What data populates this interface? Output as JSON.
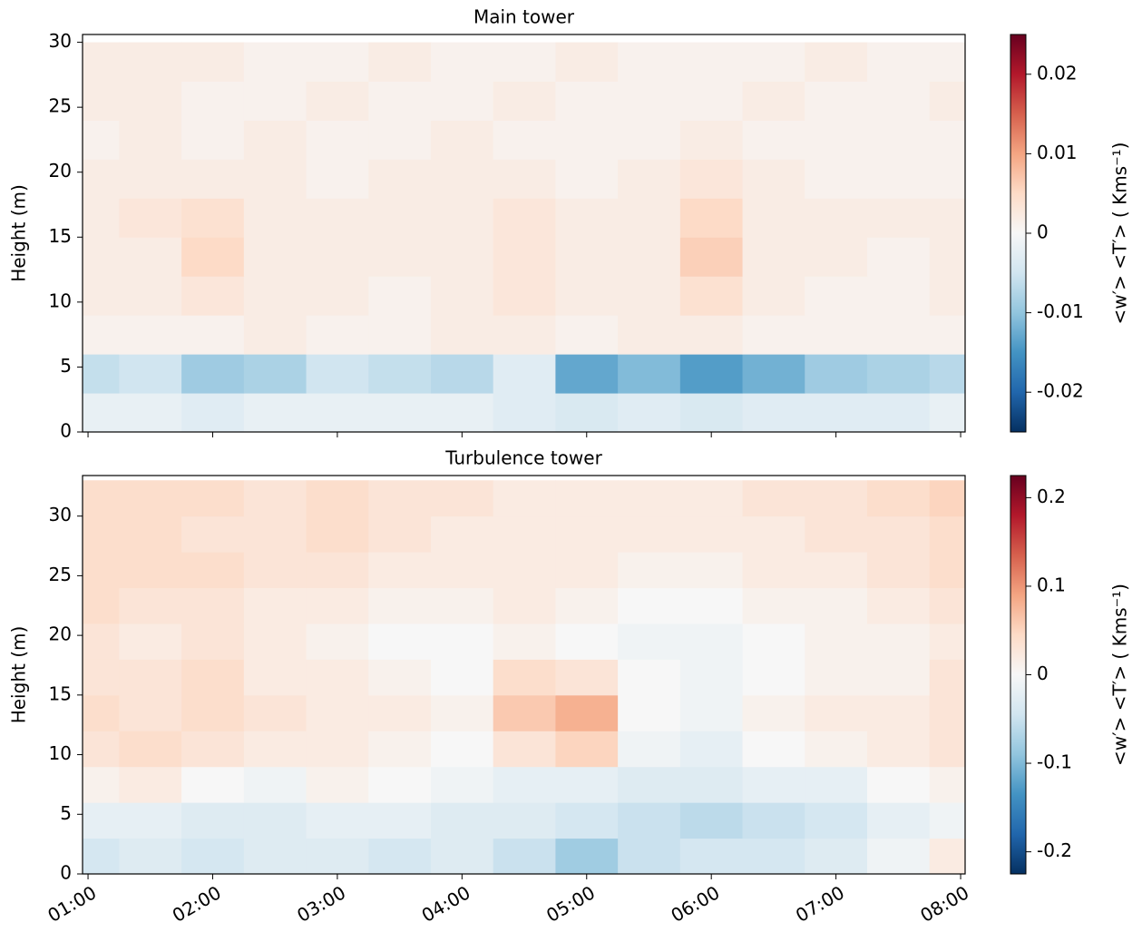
{
  "chart_data": [
    {
      "type": "heatmap",
      "title": "Main tower",
      "ylabel": "Height (m)",
      "colorbar_label": "<w′> <T′>  ( Kms⁻¹)",
      "x": [
        1,
        1.5,
        2,
        2.5,
        3,
        3.5,
        4,
        4.5,
        5,
        5.5,
        6,
        6.5,
        7,
        7.5,
        8
      ],
      "y": [
        1.5,
        4.5,
        7.5,
        10.5,
        13.5,
        16.5,
        19.5,
        22.5,
        25.5,
        28.5
      ],
      "z": [
        [
          -0.002,
          -0.002,
          -0.003,
          -0.002,
          -0.002,
          -0.002,
          -0.002,
          -0.003,
          -0.004,
          -0.003,
          -0.004,
          -0.003,
          -0.003,
          -0.003,
          -0.002
        ],
        [
          -0.006,
          -0.005,
          -0.009,
          -0.008,
          -0.005,
          -0.006,
          -0.007,
          -0.003,
          -0.013,
          -0.011,
          -0.014,
          -0.012,
          -0.009,
          -0.008,
          -0.007
        ],
        [
          0.001,
          0.001,
          0.001,
          0.002,
          0.001,
          0.001,
          0.002,
          0.002,
          0.001,
          0.002,
          0.002,
          0.001,
          0.001,
          0.001,
          0.001
        ],
        [
          0.002,
          0.002,
          0.003,
          0.002,
          0.002,
          0.001,
          0.002,
          0.003,
          0.002,
          0.002,
          0.004,
          0.002,
          0.001,
          0.001,
          0.002
        ],
        [
          0.002,
          0.002,
          0.005,
          0.002,
          0.002,
          0.002,
          0.002,
          0.003,
          0.002,
          0.002,
          0.006,
          0.002,
          0.002,
          0.001,
          0.002
        ],
        [
          0.002,
          0.003,
          0.004,
          0.002,
          0.002,
          0.002,
          0.002,
          0.003,
          0.002,
          0.002,
          0.005,
          0.002,
          0.002,
          0.002,
          0.002
        ],
        [
          0.002,
          0.002,
          0.002,
          0.002,
          0.001,
          0.002,
          0.002,
          0.002,
          0.001,
          0.002,
          0.003,
          0.002,
          0.001,
          0.001,
          0.001
        ],
        [
          0.001,
          0.002,
          0.001,
          0.002,
          0.001,
          0.001,
          0.002,
          0.001,
          0.001,
          0.001,
          0.002,
          0.001,
          0.001,
          0.001,
          0.001
        ],
        [
          0.002,
          0.002,
          0.001,
          0.001,
          0.002,
          0.001,
          0.001,
          0.002,
          0.001,
          0.001,
          0.001,
          0.002,
          0.001,
          0.001,
          0.002
        ],
        [
          0.002,
          0.002,
          0.002,
          0.001,
          0.001,
          0.002,
          0.001,
          0.001,
          0.002,
          0.001,
          0.001,
          0.001,
          0.002,
          0.001,
          0.001
        ]
      ],
      "xlim": [
        0.956,
        8.036
      ],
      "ylim": [
        0,
        30.6
      ],
      "xticks": [
        1,
        2,
        3,
        4,
        5,
        6,
        7,
        8
      ],
      "show_xtick_labels": false,
      "yticks": [
        0,
        5,
        10,
        15,
        20,
        25,
        30
      ],
      "zlim": [
        -0.025,
        0.025
      ],
      "zticks": [
        -0.02,
        -0.01,
        0.0,
        0.01,
        0.02
      ],
      "colormap": [
        "#053061",
        "#2166ac",
        "#4393c3",
        "#92c5de",
        "#d1e5f0",
        "#f7f7f7",
        "#fddbc7",
        "#f4a582",
        "#d6604d",
        "#b2182b",
        "#67001f"
      ]
    },
    {
      "type": "heatmap",
      "title": "Turbulence tower",
      "ylabel": "Height (m)",
      "colorbar_label": "<w′> <T′>  ( Kms⁻¹)",
      "x": [
        1,
        1.5,
        2,
        2.5,
        3,
        3.5,
        4,
        4.5,
        5,
        5.5,
        6,
        6.5,
        7,
        7.5,
        8
      ],
      "y": [
        1.5,
        4.5,
        7.5,
        10.5,
        13.5,
        16.5,
        19.5,
        22.5,
        25.5,
        28.5,
        31.5
      ],
      "z": [
        [
          -0.04,
          -0.03,
          -0.04,
          -0.03,
          -0.03,
          -0.04,
          -0.03,
          -0.05,
          -0.08,
          -0.05,
          -0.04,
          -0.04,
          -0.03,
          -0.01,
          0.02
        ],
        [
          -0.02,
          -0.02,
          -0.03,
          -0.03,
          -0.02,
          -0.02,
          -0.03,
          -0.03,
          -0.04,
          -0.05,
          -0.06,
          -0.05,
          -0.04,
          -0.02,
          -0.01
        ],
        [
          0.01,
          0.02,
          0.0,
          -0.01,
          0.01,
          0.0,
          -0.01,
          -0.02,
          -0.02,
          -0.03,
          -0.03,
          -0.02,
          -0.02,
          0.0,
          0.01
        ],
        [
          0.03,
          0.04,
          0.03,
          0.02,
          0.02,
          0.01,
          0.0,
          0.03,
          0.05,
          -0.01,
          -0.02,
          0.0,
          0.01,
          0.02,
          0.03
        ],
        [
          0.04,
          0.03,
          0.04,
          0.03,
          0.02,
          0.02,
          0.01,
          0.06,
          0.08,
          0.0,
          -0.01,
          0.01,
          0.02,
          0.02,
          0.03
        ],
        [
          0.03,
          0.03,
          0.04,
          0.02,
          0.02,
          0.01,
          0.0,
          0.04,
          0.03,
          0.0,
          -0.01,
          0.0,
          0.01,
          0.01,
          0.03
        ],
        [
          0.03,
          0.02,
          0.03,
          0.02,
          0.01,
          0.0,
          0.0,
          0.01,
          0.0,
          -0.01,
          -0.01,
          0.0,
          0.01,
          0.01,
          0.02
        ],
        [
          0.04,
          0.03,
          0.03,
          0.02,
          0.02,
          0.01,
          0.01,
          0.02,
          0.01,
          0.0,
          0.0,
          0.01,
          0.01,
          0.02,
          0.03
        ],
        [
          0.04,
          0.04,
          0.04,
          0.03,
          0.03,
          0.02,
          0.02,
          0.02,
          0.02,
          0.01,
          0.01,
          0.02,
          0.02,
          0.03,
          0.04
        ],
        [
          0.04,
          0.04,
          0.03,
          0.03,
          0.04,
          0.03,
          0.02,
          0.02,
          0.02,
          0.02,
          0.02,
          0.02,
          0.03,
          0.03,
          0.04
        ],
        [
          0.04,
          0.04,
          0.04,
          0.03,
          0.04,
          0.03,
          0.03,
          0.02,
          0.02,
          0.02,
          0.02,
          0.03,
          0.03,
          0.04,
          0.05
        ]
      ],
      "xlim": [
        0.956,
        8.036
      ],
      "ylim": [
        0,
        33.4
      ],
      "xticks": [
        {
          "value": 1,
          "label": "01:00"
        },
        {
          "value": 2,
          "label": "02:00"
        },
        {
          "value": 3,
          "label": "03:00"
        },
        {
          "value": 4,
          "label": "04:00"
        },
        {
          "value": 5,
          "label": "05:00"
        },
        {
          "value": 6,
          "label": "06:00"
        },
        {
          "value": 7,
          "label": "07:00"
        },
        {
          "value": 8,
          "label": "08:00"
        }
      ],
      "show_xtick_labels": true,
      "yticks": [
        0,
        5,
        10,
        15,
        20,
        25,
        30
      ],
      "zlim": [
        -0.225,
        0.225
      ],
      "zticks": [
        -0.2,
        -0.1,
        0.0,
        0.1,
        0.2
      ],
      "colormap": [
        "#053061",
        "#2166ac",
        "#4393c3",
        "#92c5de",
        "#d1e5f0",
        "#f7f7f7",
        "#fddbc7",
        "#f4a582",
        "#d6604d",
        "#b2182b",
        "#67001f"
      ]
    }
  ]
}
